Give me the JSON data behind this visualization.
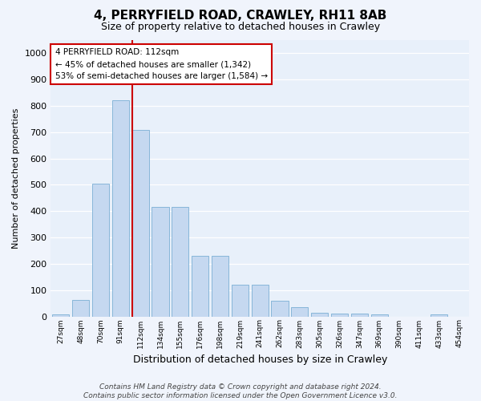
{
  "title": "4, PERRYFIELD ROAD, CRAWLEY, RH11 8AB",
  "subtitle": "Size of property relative to detached houses in Crawley",
  "xlabel": "Distribution of detached houses by size in Crawley",
  "ylabel": "Number of detached properties",
  "categories": [
    "27sqm",
    "48sqm",
    "70sqm",
    "91sqm",
    "112sqm",
    "134sqm",
    "155sqm",
    "176sqm",
    "198sqm",
    "219sqm",
    "241sqm",
    "262sqm",
    "283sqm",
    "305sqm",
    "326sqm",
    "347sqm",
    "369sqm",
    "390sqm",
    "411sqm",
    "433sqm",
    "454sqm"
  ],
  "values": [
    7,
    62,
    505,
    820,
    710,
    415,
    415,
    230,
    230,
    120,
    120,
    60,
    35,
    15,
    12,
    10,
    7,
    0,
    0,
    8,
    0
  ],
  "bar_color": "#c5d8f0",
  "bar_edge_color": "#7bafd4",
  "vline_color": "#cc0000",
  "annotation_text": "4 PERRYFIELD ROAD: 112sqm\n← 45% of detached houses are smaller (1,342)\n53% of semi-detached houses are larger (1,584) →",
  "annotation_box_color": "#ffffff",
  "annotation_box_edge": "#cc0000",
  "ylim": [
    0,
    1050
  ],
  "yticks": [
    0,
    100,
    200,
    300,
    400,
    500,
    600,
    700,
    800,
    900,
    1000
  ],
  "fig_bg_color": "#f0f4fc",
  "ax_bg_color": "#e8f0fa",
  "grid_color": "#ffffff",
  "footer": "Contains HM Land Registry data © Crown copyright and database right 2024.\nContains public sector information licensed under the Open Government Licence v3.0."
}
